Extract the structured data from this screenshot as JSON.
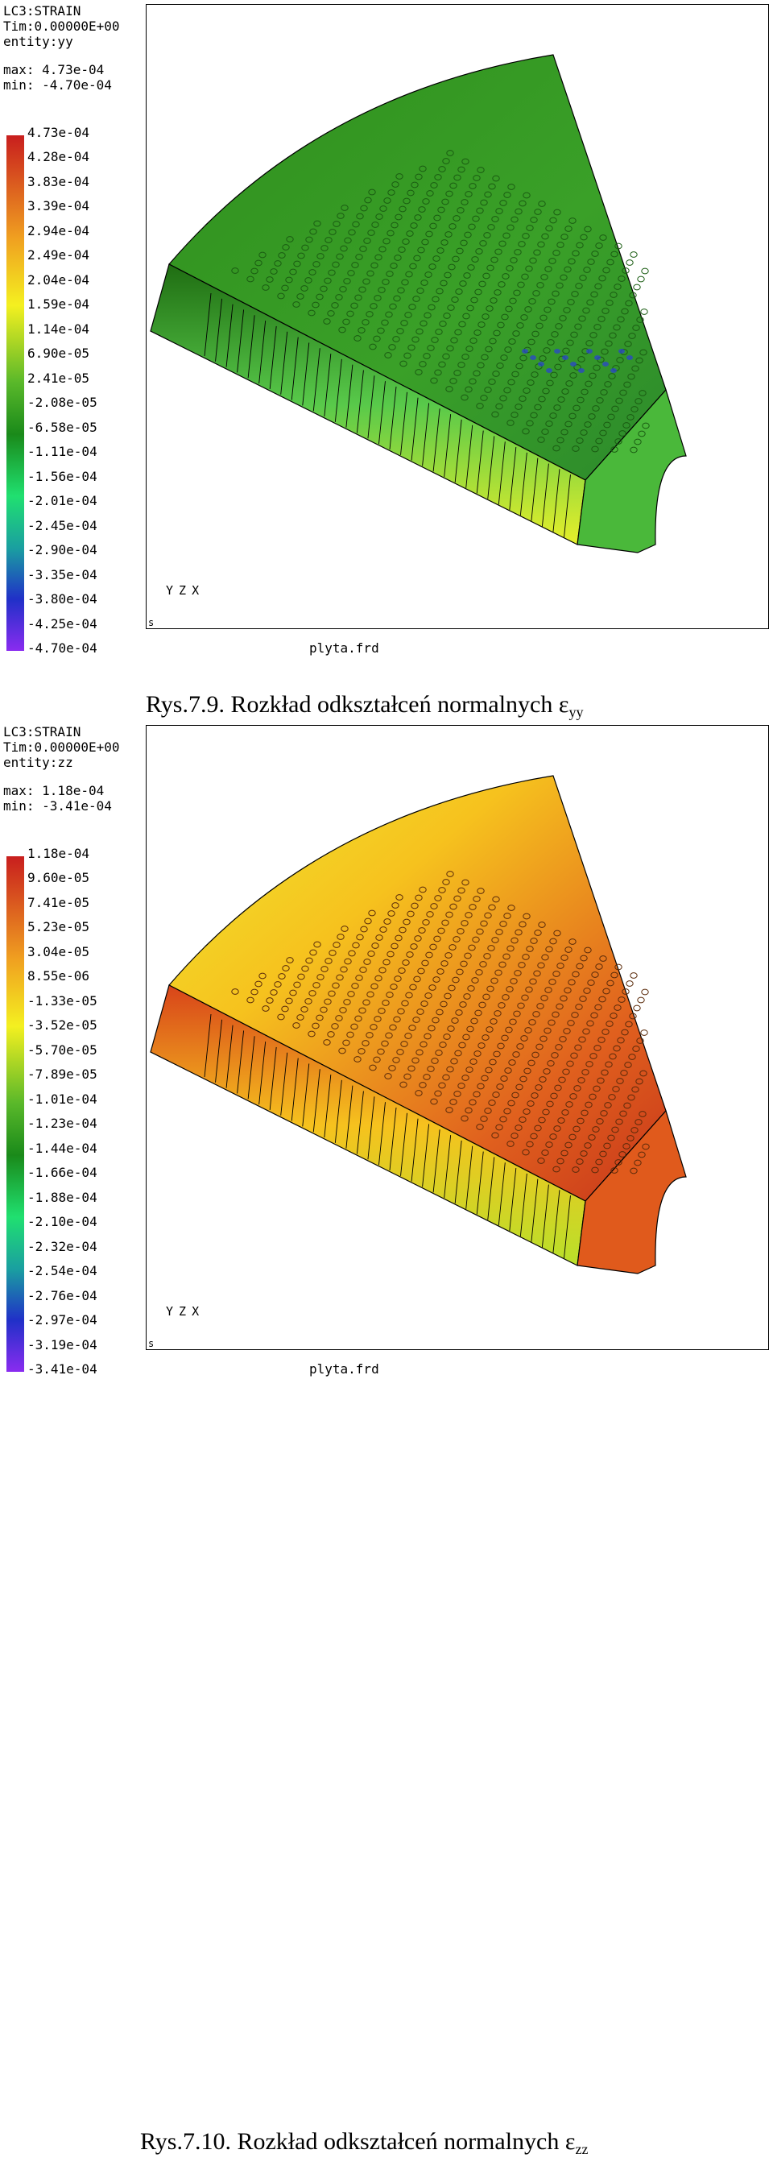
{
  "figures": [
    {
      "header": {
        "lc": "LC3:STRAIN",
        "time": "Tim:0.00000E+00",
        "entity": "entity:yy",
        "max": "max: 4.73e-04",
        "min": "min: -4.70e-04"
      },
      "legend": [
        "4.73e-04",
        "4.28e-04",
        "3.83e-04",
        "3.39e-04",
        "2.94e-04",
        "2.49e-04",
        "2.04e-04",
        "1.59e-04",
        "1.14e-04",
        "6.90e-05",
        "2.41e-05",
        "-2.08e-05",
        "-6.58e-05",
        "-1.11e-04",
        "-1.56e-04",
        "-2.01e-04",
        "-2.45e-04",
        "-2.90e-04",
        "-3.35e-04",
        "-3.80e-04",
        "-4.25e-04",
        "-4.70e-04"
      ],
      "axis_label": "Y Z X",
      "corner_mark": "s",
      "filename": "plyta.frd",
      "caption_main": "Rys.7.9. Rozkład odkształceń normalnych ε",
      "caption_sub": "yy",
      "colors": {
        "top": "#2f8f1d",
        "face_light": "#58c94a",
        "face_dark": "#1f6d12",
        "accent": "#e6ef2a",
        "holes": "#1a5c12",
        "blue": "#2a3fd8"
      }
    },
    {
      "header": {
        "lc": "LC3:STRAIN",
        "time": "Tim:0.00000E+00",
        "entity": "entity:zz",
        "max": "max: 1.18e-04",
        "min": "min: -3.41e-04"
      },
      "legend": [
        "1.18e-04",
        "9.60e-05",
        "7.41e-05",
        "5.23e-05",
        "3.04e-05",
        "8.55e-06",
        "-1.33e-05",
        "-3.52e-05",
        "-5.70e-05",
        "-7.89e-05",
        "-1.01e-04",
        "-1.23e-04",
        "-1.44e-04",
        "-1.66e-04",
        "-1.88e-04",
        "-2.10e-04",
        "-2.32e-04",
        "-2.54e-04",
        "-2.76e-04",
        "-2.97e-04",
        "-3.19e-04",
        "-3.41e-04"
      ],
      "axis_label": "Y Z X",
      "corner_mark": "s",
      "filename": "plyta.frd",
      "caption_main": "Rys.7.10. Rozkład odkształceń normalnych ε",
      "caption_sub": "zz",
      "colors": {
        "top": "#f0e830",
        "face_light": "#f6c21e",
        "face_dark": "#d8471a",
        "accent": "#b9e02a",
        "holes": "#5a2a0a",
        "blue": "#2a3fd8"
      }
    }
  ]
}
